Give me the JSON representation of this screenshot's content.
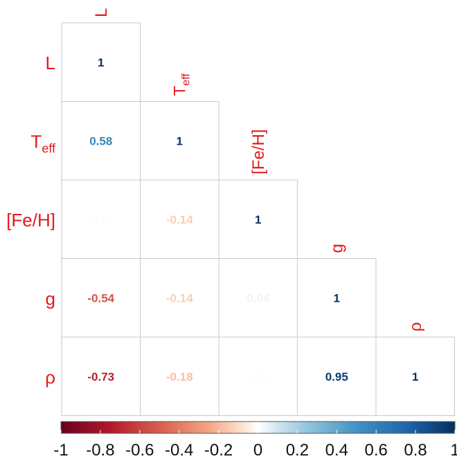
{
  "chart_data": {
    "type": "heatmap",
    "layout": "lower-triangle",
    "variables": [
      {
        "name": "L",
        "sub": ""
      },
      {
        "name": "T",
        "sub": "eff"
      },
      {
        "name": "[Fe/H]",
        "sub": ""
      },
      {
        "name": "g",
        "sub": ""
      },
      {
        "name": "ρ",
        "sub": ""
      }
    ],
    "matrix": [
      [
        1,
        null,
        null,
        null,
        null
      ],
      [
        0.58,
        1,
        null,
        null,
        null
      ],
      [
        -0.01,
        -0.14,
        1,
        null,
        null
      ],
      [
        -0.54,
        -0.14,
        0.04,
        1,
        null
      ],
      [
        -0.73,
        -0.18,
        0.01,
        0.95,
        1
      ]
    ],
    "cell_labels": [
      [
        "1",
        "",
        "",
        "",
        ""
      ],
      [
        "0.58",
        "1",
        "",
        "",
        ""
      ],
      [
        "-0.01",
        "-0.14",
        "1",
        "",
        ""
      ],
      [
        "-0.54",
        "-0.14",
        "0.04",
        "1",
        ""
      ],
      [
        "-0.73",
        "-0.18",
        "0.01",
        "0.95",
        "1"
      ]
    ],
    "colorbar": {
      "range": [
        -1,
        1
      ],
      "ticks": [
        "-1",
        "-0.8",
        "-0.6",
        "-0.4",
        "-0.2",
        "0",
        "0.2",
        "0.4",
        "0.6",
        "0.8",
        "1"
      ],
      "low_color": "#67001f",
      "mid_color": "#ffffff",
      "high_color": "#053061"
    },
    "label_color": "#e3191c"
  }
}
